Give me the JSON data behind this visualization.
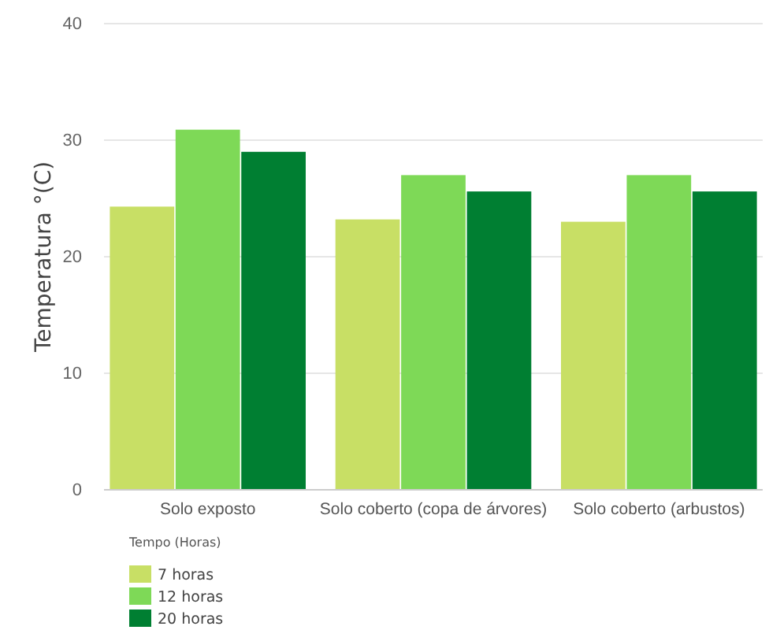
{
  "chart_data": {
    "type": "bar",
    "ylabel": "Temperatura °(C)",
    "legend_title": "Tempo (Horas)",
    "categories": [
      "Solo exposto",
      "Solo coberto (copa de árvores)",
      "Solo coberto (arbustos)"
    ],
    "series": [
      {
        "name": "7 horas",
        "color": "#c8df65",
        "values": [
          24.3,
          23.2,
          23.0
        ]
      },
      {
        "name": "12 horas",
        "color": "#7ed957",
        "values": [
          30.9,
          27.0,
          27.0
        ]
      },
      {
        "name": "20 horas",
        "color": "#007f32",
        "values": [
          29.0,
          25.6,
          25.6
        ]
      }
    ],
    "ylim": [
      0,
      40
    ],
    "yticks": [
      0,
      10,
      20,
      30,
      40
    ],
    "grid": "y",
    "legend": "bottom left"
  }
}
